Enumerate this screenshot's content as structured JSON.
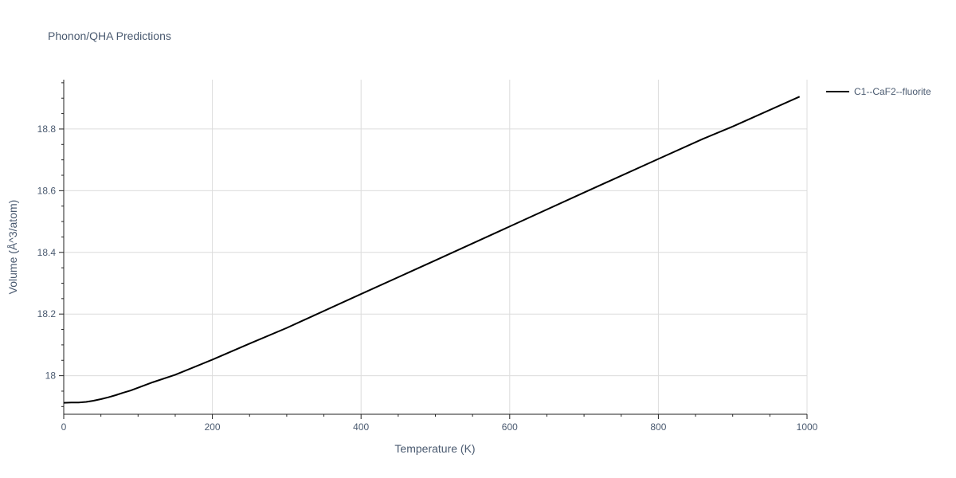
{
  "chart_data": {
    "type": "line",
    "title": "Phonon/QHA Predictions",
    "xlabel": "Temperature (K)",
    "ylabel": "Volume (Å^3/atom)",
    "xlim": [
      0,
      1000
    ],
    "ylim": [
      17.875,
      18.96
    ],
    "x_ticks": [
      0,
      200,
      400,
      600,
      800,
      1000
    ],
    "x_tick_labels": [
      "0",
      "200",
      "400",
      "600",
      "800",
      "1000"
    ],
    "y_ticks": [
      18.0,
      18.2,
      18.4,
      18.6,
      18.8
    ],
    "y_tick_labels": [
      "18",
      "18.2",
      "18.4",
      "18.6",
      "18.8"
    ],
    "grid": true,
    "legend_position": "top-right, outside plot",
    "series": [
      {
        "name": "C1--CaF2--fluorite",
        "color": "#000000",
        "x": [
          0,
          10,
          20,
          30,
          40,
          50,
          60,
          70,
          80,
          90,
          100,
          120,
          150,
          200,
          250,
          300,
          400,
          500,
          600,
          700,
          800,
          860,
          900,
          990
        ],
        "y": [
          17.912,
          17.913,
          17.913,
          17.915,
          17.919,
          17.924,
          17.93,
          17.937,
          17.945,
          17.952,
          17.961,
          17.979,
          18.003,
          18.052,
          18.104,
          18.155,
          18.265,
          18.374,
          18.484,
          18.594,
          18.703,
          18.768,
          18.808,
          18.905
        ]
      }
    ]
  }
}
